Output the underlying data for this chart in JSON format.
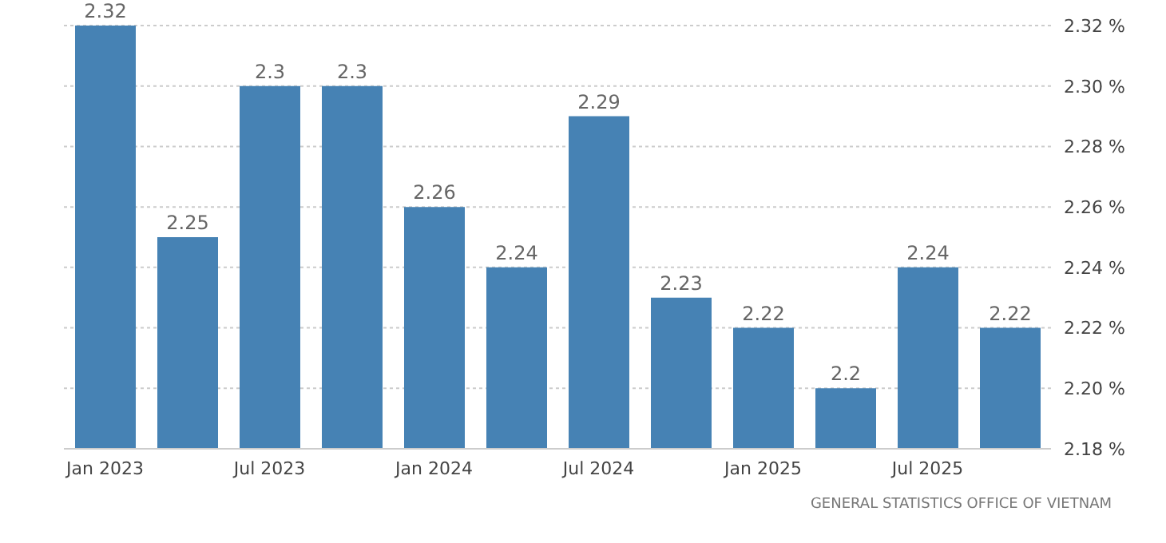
{
  "chart_data": {
    "type": "bar",
    "categories": [
      "Jan 2023",
      null,
      "Jul 2023",
      null,
      "Jan 2024",
      null,
      "Jul 2024",
      null,
      "Jan 2025",
      null,
      "Jul 2025",
      null
    ],
    "values": [
      2.32,
      2.25,
      2.3,
      2.3,
      2.26,
      2.24,
      2.29,
      2.23,
      2.22,
      2.2,
      2.24,
      2.22
    ],
    "color": "#4682b4",
    "ylim": [
      2.18,
      2.32
    ],
    "yticks": [
      {
        "value": 2.18,
        "label": "2.18 %"
      },
      {
        "value": 2.2,
        "label": "2.20 %"
      },
      {
        "value": 2.22,
        "label": "2.22 %"
      },
      {
        "value": 2.24,
        "label": "2.24 %"
      },
      {
        "value": 2.26,
        "label": "2.26 %"
      },
      {
        "value": 2.28,
        "label": "2.28 %"
      },
      {
        "value": 2.3,
        "label": "2.30 %"
      },
      {
        "value": 2.32,
        "label": "2.32 %"
      }
    ],
    "grid": "y",
    "data_labels": true,
    "annotations": [
      "GENERAL STATISTICS OFFICE OF VIETNAM"
    ]
  }
}
